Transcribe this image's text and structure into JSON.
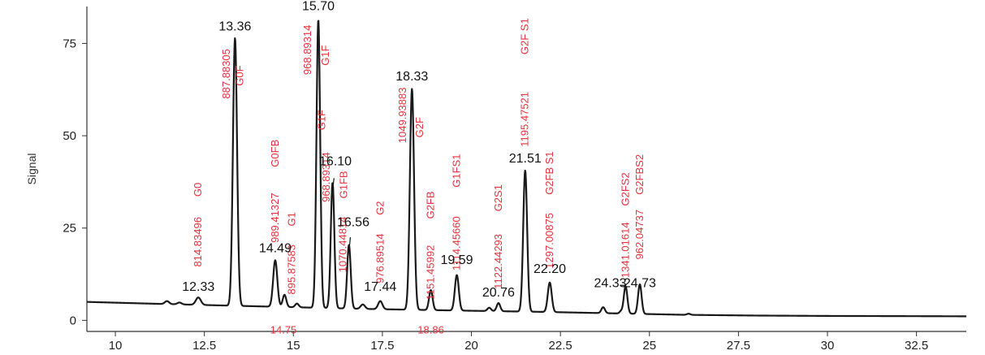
{
  "chart_data": {
    "type": "line",
    "title": "",
    "xlabel": "",
    "ylabel": "Signal",
    "xlim": [
      9.2,
      33.9
    ],
    "ylim": [
      -3,
      85
    ],
    "x_ticks": [
      10,
      12.5,
      15,
      17.5,
      20,
      22.5,
      25,
      27.5,
      30,
      32.5
    ],
    "x_tick_labels": [
      "10",
      "12.5",
      "15",
      "17.5",
      "20",
      "22.5",
      "25",
      "27.5",
      "30",
      "32.5"
    ],
    "y_ticks": [
      0,
      25,
      50,
      75
    ],
    "y_tick_labels": [
      "0",
      "25",
      "50",
      "75"
    ],
    "grid": false,
    "colors": {
      "trace": "#1a1a1a",
      "annotation": "#e8323c",
      "axis": "#333333"
    },
    "baseline": {
      "points": [
        [
          9.2,
          5.0
        ],
        [
          11.5,
          4.4
        ],
        [
          14.0,
          3.8
        ],
        [
          17.0,
          3.1
        ],
        [
          20.0,
          2.6
        ],
        [
          22.0,
          2.3
        ],
        [
          24.0,
          1.9
        ],
        [
          26.0,
          1.5
        ],
        [
          28.0,
          1.3
        ],
        [
          30.0,
          1.2
        ],
        [
          33.9,
          1.1
        ]
      ]
    },
    "series": [
      {
        "values": [
          {
            "x": 11.45,
            "y": 0.8,
            "w": 0.06
          },
          {
            "x": 11.8,
            "y": 0.5,
            "w": 0.06
          },
          {
            "x": 12.33,
            "y": 2.0,
            "w": 0.07
          },
          {
            "x": 13.36,
            "y": 72.5,
            "w": 0.058
          },
          {
            "x": 14.49,
            "y": 12.6,
            "w": 0.058
          },
          {
            "x": 14.75,
            "y": 3.3,
            "w": 0.05
          },
          {
            "x": 15.1,
            "y": 1.0,
            "w": 0.05
          },
          {
            "x": 15.7,
            "y": 78.0,
            "w": 0.052
          },
          {
            "x": 16.1,
            "y": 34.0,
            "w": 0.05
          },
          {
            "x": 16.56,
            "y": 17.2,
            "w": 0.05
          },
          {
            "x": 16.95,
            "y": 1.2,
            "w": 0.06
          },
          {
            "x": 17.44,
            "y": 2.2,
            "w": 0.06
          },
          {
            "x": 18.33,
            "y": 59.8,
            "w": 0.058
          },
          {
            "x": 18.86,
            "y": 5.4,
            "w": 0.05
          },
          {
            "x": 19.59,
            "y": 9.6,
            "w": 0.055
          },
          {
            "x": 20.5,
            "y": 0.9,
            "w": 0.05
          },
          {
            "x": 20.76,
            "y": 2.2,
            "w": 0.05
          },
          {
            "x": 21.51,
            "y": 38.2,
            "w": 0.055
          },
          {
            "x": 22.2,
            "y": 8.0,
            "w": 0.055
          },
          {
            "x": 23.7,
            "y": 1.6,
            "w": 0.05
          },
          {
            "x": 24.2,
            "y": 0.6,
            "w": 0.04
          },
          {
            "x": 24.33,
            "y": 7.4,
            "w": 0.05
          },
          {
            "x": 24.73,
            "y": 8.0,
            "w": 0.05
          },
          {
            "x": 26.1,
            "y": 0.3,
            "w": 0.05
          }
        ]
      }
    ],
    "peak_labels": [
      {
        "text": "12.33",
        "x": 12.33,
        "y": 8.0
      },
      {
        "text": "13.36",
        "x": 13.36,
        "y": 78.5
      },
      {
        "text": "14.49",
        "x": 14.49,
        "y": 18.5
      },
      {
        "text": "15.70",
        "x": 15.7,
        "y": 84.0
      },
      {
        "text": "16.10",
        "x": 16.18,
        "y": 42.0
      },
      {
        "text": "16.56",
        "x": 16.68,
        "y": 25.5
      },
      {
        "text": "17.44",
        "x": 17.44,
        "y": 8.0
      },
      {
        "text": "18.33",
        "x": 18.33,
        "y": 65.0
      },
      {
        "text": "19.59",
        "x": 19.59,
        "y": 15.3
      },
      {
        "text": "20.76",
        "x": 20.76,
        "y": 6.5
      },
      {
        "text": "21.51",
        "x": 21.51,
        "y": 42.8
      },
      {
        "text": "22.20",
        "x": 22.2,
        "y": 12.8
      },
      {
        "text": "24.33",
        "x": 23.9,
        "y": 9.0
      },
      {
        "text": "24.73",
        "x": 24.73,
        "y": 9.0
      }
    ],
    "leader_lines": [
      {
        "x1": 16.14,
        "y1": 38.5,
        "x2": 16.1,
        "y2": 35.0
      },
      {
        "x1": 16.6,
        "y1": 22.5,
        "x2": 16.56,
        "y2": 18.5
      },
      {
        "x1": 24.18,
        "y1": 9.5,
        "x2": 24.33,
        "y2": 9.5
      }
    ],
    "annotations_vertical": [
      {
        "text": "814.83496",
        "x": 12.33,
        "y_bottom": 14.5
      },
      {
        "text": "G0",
        "x": 12.33,
        "y_bottom": 33.5
      },
      {
        "text": "887.88305",
        "x": 13.12,
        "y_bottom": 60.0
      },
      {
        "text": "G0F",
        "x": 13.5,
        "y_bottom": 63.5
      },
      {
        "text": "989.41327",
        "x": 14.49,
        "y_bottom": 21.0
      },
      {
        "text": "G0FB",
        "x": 14.49,
        "y_bottom": 41.5
      },
      {
        "text": "895.87583",
        "x": 14.96,
        "y_bottom": 7.0
      },
      {
        "text": "G1",
        "x": 14.96,
        "y_bottom": 25.5
      },
      {
        "text": "968.89314",
        "x": 15.4,
        "y_bottom": 66.5
      },
      {
        "text": "G1F",
        "x": 15.9,
        "y_bottom": 69.0
      },
      {
        "text": "G1F",
        "x": 15.8,
        "y_bottom": 51.5
      },
      {
        "text": "968.89314",
        "x": 15.93,
        "y_bottom": 32.0
      },
      {
        "text": "G1FB",
        "x": 16.42,
        "y_bottom": 33.0
      },
      {
        "text": "1070.44814",
        "x": 16.4,
        "y_bottom": 13.0
      },
      {
        "text": "G2",
        "x": 17.45,
        "y_bottom": 28.5
      },
      {
        "text": "976.89514",
        "x": 17.45,
        "y_bottom": 10.0
      },
      {
        "text": "1049.93883",
        "x": 18.07,
        "y_bottom": 48.0
      },
      {
        "text": "G2F",
        "x": 18.55,
        "y_bottom": 49.5
      },
      {
        "text": "G2FB",
        "x": 18.86,
        "y_bottom": 27.5
      },
      {
        "text": "1151.45992",
        "x": 18.86,
        "y_bottom": 5.5
      },
      {
        "text": "G1FS1",
        "x": 19.59,
        "y_bottom": 36.0
      },
      {
        "text": "1114.45660",
        "x": 19.59,
        "y_bottom": 13.5
      },
      {
        "text": "G2S1",
        "x": 20.76,
        "y_bottom": 29.5
      },
      {
        "text": "1122.44293",
        "x": 20.76,
        "y_bottom": 8.5
      },
      {
        "text": "1195.47521",
        "x": 21.51,
        "y_bottom": 47.0
      },
      {
        "text": "G2F S1",
        "x": 21.51,
        "y_bottom": 72.0
      },
      {
        "text": "G2FB S1",
        "x": 22.2,
        "y_bottom": 34.0
      },
      {
        "text": "1297.00875",
        "x": 22.2,
        "y_bottom": 14.0
      },
      {
        "text": "G2FS2",
        "x": 24.33,
        "y_bottom": 31.0
      },
      {
        "text": "1341.01614",
        "x": 24.33,
        "y_bottom": 11.5
      },
      {
        "text": "G2FBS2",
        "x": 24.73,
        "y_bottom": 34.0
      },
      {
        "text": "962.04737",
        "x": 24.73,
        "y_bottom": 16.5
      }
    ],
    "annotations_horizontal": [
      {
        "text": "14.75",
        "x": 14.72,
        "y": -2.4
      },
      {
        "text": "18.86",
        "x": 18.86,
        "y": -2.4
      }
    ]
  }
}
